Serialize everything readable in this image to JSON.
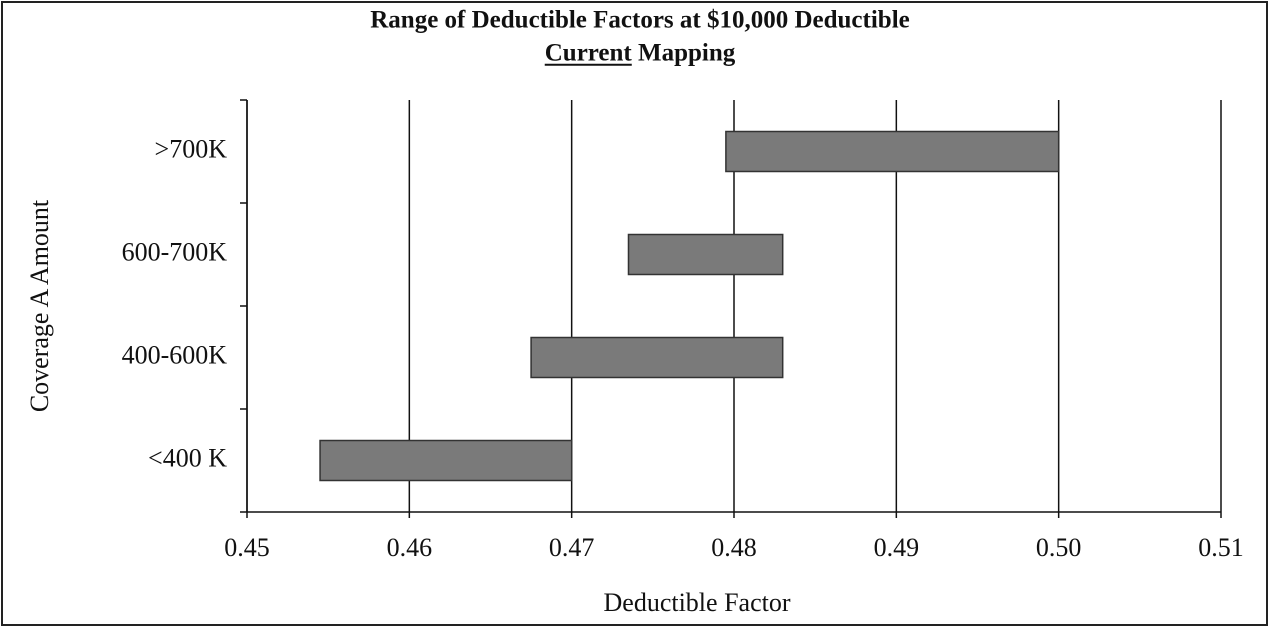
{
  "chart_data": {
    "type": "range-bar",
    "title": "Range of Deductible Factors at $10,000 Deductible",
    "subtitle": "Current Mapping",
    "x_label": "Deductible Factor",
    "y_label": "Coverage A Amount",
    "categories": [
      "<400 K",
      "400-600K",
      "600-700K",
      ">700K"
    ],
    "low": [
      0.4545,
      0.4675,
      0.4735,
      0.4795
    ],
    "high": [
      0.47,
      0.483,
      0.483,
      0.5
    ],
    "color": "#7a7a7a",
    "xlim": [
      0.45,
      0.51
    ],
    "xticks": [
      0.45,
      0.46,
      0.47,
      0.48,
      0.49,
      {
        "value": 0.5,
        "label": "0.50"
      },
      0.51
    ],
    "grid": true
  }
}
